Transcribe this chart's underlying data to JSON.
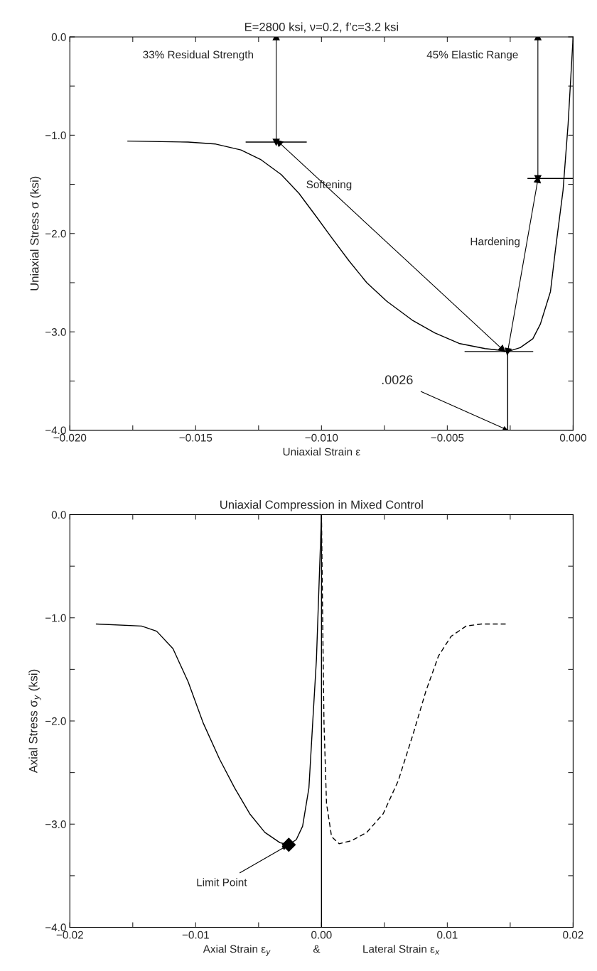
{
  "chart_data": [
    {
      "type": "line",
      "title": "E=2800 ksi, ν=0.2, f’c=3.2 ksi",
      "xlabel": "Uniaxial Strain ε",
      "ylabel": "Uniaxial Stress σ (ksi)",
      "xlim": [
        -0.02,
        0.0
      ],
      "ylim": [
        -4.0,
        0.0
      ],
      "xticks": [
        {
          "value": -0.02,
          "label": "−0.020"
        },
        {
          "value": -0.0175,
          "label": null
        },
        {
          "value": -0.015,
          "label": "−0.015"
        },
        {
          "value": -0.0125,
          "label": null
        },
        {
          "value": -0.01,
          "label": "−0.010"
        },
        {
          "value": -0.0075,
          "label": null
        },
        {
          "value": -0.005,
          "label": "−0.005"
        },
        {
          "value": -0.0025,
          "label": null
        },
        {
          "value": 0.0,
          "label": "0.000"
        }
      ],
      "yticks": [
        {
          "value": -4.0,
          "label": "−4.0"
        },
        {
          "value": -3.5,
          "label": null
        },
        {
          "value": -3.0,
          "label": "−3.0"
        },
        {
          "value": -2.5,
          "label": null
        },
        {
          "value": -2.0,
          "label": "−2.0"
        },
        {
          "value": -1.5,
          "label": null
        },
        {
          "value": -1.0,
          "label": "−1.0"
        },
        {
          "value": -0.5,
          "label": null
        },
        {
          "value": 0.0,
          "label": "0.0"
        }
      ],
      "series": [
        {
          "color": "#000000",
          "line_style": "solid",
          "x": [
            -0.0177,
            -0.0153,
            -0.0142,
            -0.0132,
            -0.0124,
            -0.0116,
            -0.0109,
            -0.0102,
            -0.0096,
            -0.0089,
            -0.0082,
            -0.0074,
            -0.0064,
            -0.0055,
            -0.0045,
            -0.0035,
            -0.0028,
            -0.0026,
            -0.0021,
            -0.0016,
            -0.0013,
            -0.0009,
            -0.0007,
            -0.0004,
            -0.0002,
            0.0
          ],
          "values": [
            -1.06,
            -1.07,
            -1.09,
            -1.15,
            -1.25,
            -1.4,
            -1.59,
            -1.83,
            -2.04,
            -2.28,
            -2.5,
            -2.69,
            -2.88,
            -3.01,
            -3.12,
            -3.17,
            -3.19,
            -3.2,
            -3.16,
            -3.07,
            -2.92,
            -2.59,
            -2.16,
            -1.56,
            -0.89,
            0.0
          ]
        },
        {
          "color": "#000000",
          "line_style": "solid",
          "x": [
            -0.013,
            -0.0106
          ],
          "values": [
            -1.07,
            -1.07
          ]
        },
        {
          "color": "#000000",
          "line_style": "solid",
          "x": [
            -0.0018,
            0.0
          ],
          "values": [
            -1.44,
            -1.44
          ]
        },
        {
          "color": "#000000",
          "line_style": "solid",
          "x": [
            -0.0043,
            -0.0016
          ],
          "values": [
            -3.2,
            -3.2
          ]
        },
        {
          "color": "#000000",
          "line_style": "solid",
          "x": [
            -0.0026,
            -0.0026
          ],
          "values": [
            -3.2,
            -4.0
          ]
        },
        {
          "color": "#000000",
          "marker": "triangle",
          "x": [
            -0.0118,
            -0.0118
          ],
          "values": [
            0.0,
            -1.07
          ]
        },
        {
          "color": "#000000",
          "marker": "triangle",
          "x": [
            -0.0014,
            -0.0014
          ],
          "values": [
            0.0,
            -1.44
          ]
        },
        {
          "color": "#000000",
          "marker": "triangle",
          "x": [
            -0.0117,
            -0.0028
          ],
          "values": [
            -1.07,
            -3.18
          ]
        },
        {
          "color": "#000000",
          "marker": "triangle",
          "x": [
            -0.0014,
            -0.0026
          ],
          "values": [
            -1.45,
            -3.2
          ]
        }
      ],
      "annotations": [
        "33% Residual Strength",
        "45% Elastic Range",
        "Softening",
        "Hardening",
        {
          "text": ".0026",
          "x": -0.0026,
          "y": -4.0
        }
      ]
    },
    {
      "type": "line",
      "title": "Uniaxial Compression in Mixed Control",
      "xlabel": "Axial Strain ε$_{y}$              &              Lateral Strain ε$_{x}$",
      "ylabel": "Axial Stress σ$_{y}$ (ksi)",
      "xlim": [
        -0.02,
        0.02
      ],
      "ylim": [
        -4.0,
        0.0
      ],
      "xticks": [
        {
          "value": -0.02,
          "label": "−0.02"
        },
        {
          "value": -0.015,
          "label": null
        },
        {
          "value": -0.01,
          "label": "−0.01"
        },
        {
          "value": -0.005,
          "label": null
        },
        {
          "value": 0.0,
          "label": "0.00"
        },
        {
          "value": 0.005,
          "label": null
        },
        {
          "value": 0.01,
          "label": "0.01"
        },
        {
          "value": 0.015,
          "label": null
        },
        {
          "value": 0.02,
          "label": "0.02"
        }
      ],
      "yticks": [
        {
          "value": -4.0,
          "label": "−4.0"
        },
        {
          "value": -3.5,
          "label": null
        },
        {
          "value": -3.0,
          "label": "−3.0"
        },
        {
          "value": -2.5,
          "label": null
        },
        {
          "value": -2.0,
          "label": "−2.0"
        },
        {
          "value": -1.5,
          "label": null
        },
        {
          "value": -1.0,
          "label": "−1.0"
        },
        {
          "value": -0.5,
          "label": null
        },
        {
          "value": 0.0,
          "label": "0.0"
        }
      ],
      "series": [
        {
          "color": "#000000",
          "line_style": "solid",
          "x": [
            -0.0179,
            -0.0143,
            -0.0131,
            -0.0118,
            -0.0106,
            -0.0094,
            -0.0081,
            -0.0069,
            -0.0057,
            -0.0045,
            -0.0033,
            -0.0026,
            -0.002,
            -0.0015,
            -0.001,
            -0.0007,
            -0.0004,
            0.0
          ],
          "values": [
            -1.06,
            -1.08,
            -1.13,
            -1.3,
            -1.62,
            -2.02,
            -2.37,
            -2.65,
            -2.9,
            -3.08,
            -3.18,
            -3.2,
            -3.15,
            -3.02,
            -2.65,
            -2.02,
            -1.4,
            0.0
          ]
        },
        {
          "color": "#000000",
          "line_style": "dashed",
          "x": [
            0.0,
            0.0001,
            0.0002,
            0.0004,
            0.0008,
            0.0014,
            0.0024,
            0.0036,
            0.0049,
            0.0061,
            0.0073,
            0.0083,
            0.0093,
            0.0103,
            0.0115,
            0.0127,
            0.0147
          ],
          "values": [
            0.0,
            -1.08,
            -2.02,
            -2.8,
            -3.12,
            -3.19,
            -3.16,
            -3.08,
            -2.9,
            -2.58,
            -2.12,
            -1.71,
            -1.37,
            -1.18,
            -1.08,
            -1.06,
            -1.06
          ]
        },
        {
          "type": "scatter",
          "color": "#000000",
          "marker": "diamond",
          "x": [
            -0.0026
          ],
          "values": [
            -3.2
          ]
        }
      ],
      "ref_lines": [
        {
          "axis": "x",
          "value": 0.0,
          "color": "#000000"
        }
      ],
      "annotations": [
        {
          "text": "Limit Point",
          "x": -0.0026,
          "y": -3.2
        }
      ]
    }
  ]
}
